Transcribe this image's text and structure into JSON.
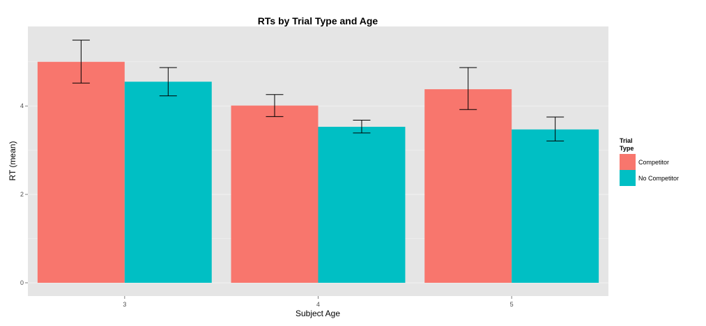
{
  "chart_data": {
    "type": "bar",
    "title": "RTs by Trial Type and Age",
    "xlabel": "Subject Age",
    "ylabel": "RT (mean)",
    "categories": [
      "3",
      "4",
      "5"
    ],
    "yticks": [
      "0",
      "2",
      "4"
    ],
    "ylim": [
      -0.3,
      5.8
    ],
    "grid": true,
    "legend": {
      "title": "Trial Type",
      "title_lines": [
        "Trial",
        "Type"
      ],
      "position": "right"
    },
    "series": [
      {
        "name": "Competitor",
        "color": "#F8766D",
        "values": [
          5.0,
          4.01,
          4.38
        ],
        "error_low": [
          4.52,
          3.76,
          3.92
        ],
        "error_high": [
          5.49,
          4.26,
          4.87
        ]
      },
      {
        "name": "No Competitor",
        "color": "#00BFC4",
        "values": [
          4.55,
          3.53,
          3.47
        ],
        "error_low": [
          4.23,
          3.39,
          3.21
        ],
        "error_high": [
          4.87,
          3.68,
          3.75
        ]
      }
    ],
    "colors": {
      "panel": "#E5E5E5",
      "gridline": "#F2F2F2",
      "tick": "#7F7F7F",
      "errorbar": "#000000"
    }
  }
}
